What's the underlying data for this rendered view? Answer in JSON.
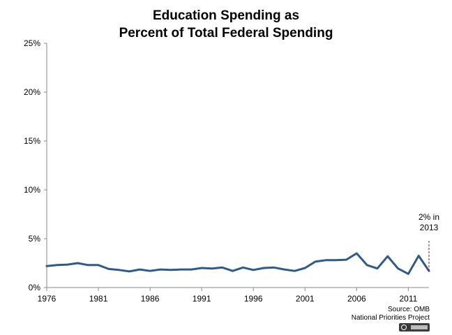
{
  "title_line1": "Education Spending as",
  "title_line2": "Percent of Total Federal Spending",
  "source_line1": "Source: OMB",
  "source_line2": "National Priorities Project",
  "license_label": "BY-NC",
  "chart_data": {
    "type": "line",
    "title": "Education Spending as Percent of Total Federal Spending",
    "xlabel": "",
    "ylabel": "",
    "xlim": [
      1976,
      2013
    ],
    "ylim": [
      0,
      25
    ],
    "y_ticks": [
      "0%",
      "5%",
      "10%",
      "15%",
      "20%",
      "25%"
    ],
    "x_ticks": [
      "1976",
      "1981",
      "1986",
      "1991",
      "1996",
      "2001",
      "2006",
      "2011"
    ],
    "grid": false,
    "series_color": "#2e5a8c",
    "series": [
      {
        "x": [
          1976,
          1977,
          1978,
          1979,
          1980,
          1981,
          1982,
          1983,
          1984,
          1985,
          1986,
          1987,
          1988,
          1989,
          1990,
          1991,
          1992,
          1993,
          1994,
          1995,
          1996,
          1997,
          1998,
          1999,
          2000,
          2001,
          2002,
          2003,
          2004,
          2005,
          2006,
          2007,
          2008,
          2009,
          2010,
          2011,
          2012,
          2013
        ],
        "values": [
          2.2,
          2.3,
          2.35,
          2.5,
          2.3,
          2.3,
          1.9,
          1.8,
          1.65,
          1.85,
          1.7,
          1.85,
          1.8,
          1.85,
          1.85,
          2.0,
          1.95,
          2.05,
          1.7,
          2.05,
          1.8,
          2.0,
          2.05,
          1.85,
          1.7,
          2.0,
          2.65,
          2.8,
          2.8,
          2.85,
          3.5,
          2.3,
          1.95,
          3.2,
          1.95,
          1.4,
          3.25,
          1.7
        ]
      }
    ],
    "annotation": {
      "line1": "2% in",
      "line2": "2013",
      "x": 2013
    }
  }
}
